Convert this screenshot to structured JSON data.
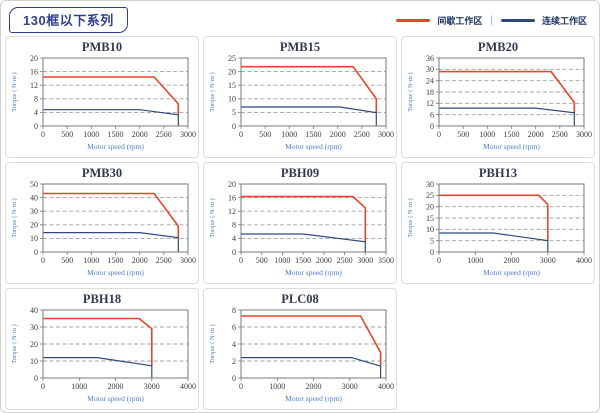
{
  "header": {
    "badge": "130框以下系列"
  },
  "legend": {
    "separator": "|",
    "items": [
      {
        "label": "间歇工作区",
        "color": "#e8442b"
      },
      {
        "label": "连续工作区",
        "color": "#2e4a7d"
      }
    ]
  },
  "colors": {
    "red": "#e8442b",
    "blue": "#2e4a7d",
    "grid": "#a0a0a0",
    "axis": "#7a7a7a",
    "badge_navy": "#2e3f8f",
    "legend_text": "#1f3864",
    "axis_label_blue": "#4d7ec6"
  },
  "chart_data": [
    {
      "type": "line",
      "title": "PMB10",
      "xlabel": "Motor speed (rpm)",
      "ylabel": "Torque ( N·m )",
      "xlim": [
        0,
        3000
      ],
      "xticks": [
        0,
        500,
        1000,
        1500,
        2000,
        2500,
        3000
      ],
      "ylim": [
        0,
        20
      ],
      "yticks": [
        0,
        4,
        8,
        12,
        16,
        20
      ],
      "series": [
        {
          "name": "间歇工作区",
          "color": "red",
          "points": [
            [
              0,
              14.4
            ],
            [
              2300,
              14.4
            ],
            [
              2800,
              6.5
            ],
            [
              2800,
              3.3
            ]
          ]
        },
        {
          "name": "连续工作区",
          "color": "blue",
          "points": [
            [
              0,
              4.8
            ],
            [
              2000,
              4.8
            ],
            [
              2800,
              3.3
            ],
            [
              2800,
              0
            ]
          ]
        }
      ]
    },
    {
      "type": "line",
      "title": "PMB15",
      "xlabel": "Motor speed (rpm)",
      "ylabel": "Torque ( N·m )",
      "xlim": [
        0,
        3000
      ],
      "xticks": [
        0,
        500,
        1000,
        1500,
        2000,
        2500,
        3000
      ],
      "ylim": [
        0,
        25
      ],
      "yticks": [
        0,
        5,
        10,
        15,
        20,
        25
      ],
      "series": [
        {
          "name": "间歇工作区",
          "color": "red",
          "points": [
            [
              0,
              21.8
            ],
            [
              2320,
              21.8
            ],
            [
              2800,
              10
            ],
            [
              2800,
              4.9
            ]
          ]
        },
        {
          "name": "连续工作区",
          "color": "blue",
          "points": [
            [
              0,
              7
            ],
            [
              2050,
              7
            ],
            [
              2800,
              4.9
            ],
            [
              2800,
              0
            ]
          ]
        }
      ]
    },
    {
      "type": "line",
      "title": "PMB20",
      "xlabel": "Motor speed (rpm)",
      "ylabel": "Torque ( N·m )",
      "xlim": [
        0,
        3000
      ],
      "xticks": [
        0,
        500,
        1000,
        1500,
        2000,
        2500,
        3000
      ],
      "ylim": [
        0,
        36
      ],
      "yticks": [
        0,
        6,
        12,
        18,
        24,
        30,
        36
      ],
      "series": [
        {
          "name": "间歇工作区",
          "color": "red",
          "points": [
            [
              0,
              28.8
            ],
            [
              2320,
              28.8
            ],
            [
              2800,
              12.5
            ],
            [
              2800,
              7
            ]
          ]
        },
        {
          "name": "连续工作区",
          "color": "blue",
          "points": [
            [
              0,
              9.5
            ],
            [
              2000,
              9.5
            ],
            [
              2800,
              7
            ],
            [
              2800,
              0
            ]
          ]
        }
      ]
    },
    {
      "type": "line",
      "title": "PMB30",
      "xlabel": "Motor speed (rpm)",
      "ylabel": "Torque ( N·m )",
      "xlim": [
        0,
        3000
      ],
      "xticks": [
        0,
        500,
        1000,
        1500,
        2000,
        2500,
        3000
      ],
      "ylim": [
        0,
        50
      ],
      "yticks": [
        0,
        10,
        20,
        30,
        40,
        50
      ],
      "series": [
        {
          "name": "间歇工作区",
          "color": "red",
          "points": [
            [
              0,
              43
            ],
            [
              2300,
              43
            ],
            [
              2800,
              19
            ],
            [
              2800,
              10.5
            ]
          ]
        },
        {
          "name": "连续工作区",
          "color": "blue",
          "points": [
            [
              0,
              14.3
            ],
            [
              2000,
              14.3
            ],
            [
              2800,
              10.5
            ],
            [
              2800,
              0
            ]
          ]
        }
      ]
    },
    {
      "type": "line",
      "title": "PBH09",
      "xlabel": "Motor speed (rpm)",
      "ylabel": "Torque ( N·m )",
      "xlim": [
        0,
        3500
      ],
      "xticks": [
        0,
        500,
        1000,
        1500,
        2000,
        2500,
        3000,
        3500
      ],
      "ylim": [
        0,
        20
      ],
      "yticks": [
        0,
        4,
        8,
        12,
        16,
        20
      ],
      "series": [
        {
          "name": "间歇工作区",
          "color": "red",
          "points": [
            [
              0,
              16.3
            ],
            [
              2700,
              16.3
            ],
            [
              3000,
              13
            ],
            [
              3000,
              3
            ]
          ]
        },
        {
          "name": "连续工作区",
          "color": "blue",
          "points": [
            [
              0,
              5.3
            ],
            [
              1500,
              5.3
            ],
            [
              3000,
              3
            ],
            [
              3000,
              0
            ]
          ]
        }
      ]
    },
    {
      "type": "line",
      "title": "PBH13",
      "xlabel": "Motor speed (rpm)",
      "ylabel": "Torque ( N·m )",
      "xlim": [
        0,
        4000
      ],
      "xticks": [
        0,
        1000,
        2000,
        3000,
        4000
      ],
      "ylim": [
        0,
        30
      ],
      "yticks": [
        0,
        5,
        10,
        15,
        20,
        25,
        30
      ],
      "series": [
        {
          "name": "间歇工作区",
          "color": "red",
          "points": [
            [
              0,
              25
            ],
            [
              2750,
              25
            ],
            [
              3000,
              21
            ],
            [
              3000,
              5
            ]
          ]
        },
        {
          "name": "连续工作区",
          "color": "blue",
          "points": [
            [
              0,
              8.4
            ],
            [
              1500,
              8.4
            ],
            [
              3000,
              5
            ],
            [
              3000,
              0
            ]
          ]
        }
      ]
    },
    {
      "type": "line",
      "title": "PBH18",
      "xlabel": "Motor speed (rpm)",
      "ylabel": "Torque ( N·m )",
      "xlim": [
        0,
        4000
      ],
      "xticks": [
        0,
        1000,
        2000,
        3000,
        4000
      ],
      "ylim": [
        0,
        40
      ],
      "yticks": [
        0,
        10,
        20,
        30,
        40
      ],
      "series": [
        {
          "name": "间歇工作区",
          "color": "red",
          "points": [
            [
              0,
              35
            ],
            [
              2650,
              35
            ],
            [
              3000,
              29
            ],
            [
              3000,
              7.2
            ]
          ]
        },
        {
          "name": "连续工作区",
          "color": "blue",
          "points": [
            [
              0,
              12
            ],
            [
              1500,
              12
            ],
            [
              3000,
              7.2
            ],
            [
              3000,
              0
            ]
          ]
        }
      ]
    },
    {
      "type": "line",
      "title": "PLC08",
      "xlabel": "Motor speed (rpm)",
      "ylabel": "Torque ( N·m )",
      "xlim": [
        0,
        4000
      ],
      "xticks": [
        0,
        1000,
        2000,
        3000,
        4000
      ],
      "ylim": [
        0,
        8
      ],
      "yticks": [
        0,
        2,
        4,
        6,
        8
      ],
      "series": [
        {
          "name": "间歇工作区",
          "color": "red",
          "points": [
            [
              0,
              7.3
            ],
            [
              3300,
              7.3
            ],
            [
              3850,
              3
            ],
            [
              3850,
              1.4
            ]
          ]
        },
        {
          "name": "连续工作区",
          "color": "blue",
          "points": [
            [
              0,
              2.4
            ],
            [
              3050,
              2.4
            ],
            [
              3850,
              1.4
            ],
            [
              3850,
              0
            ]
          ]
        }
      ]
    }
  ]
}
